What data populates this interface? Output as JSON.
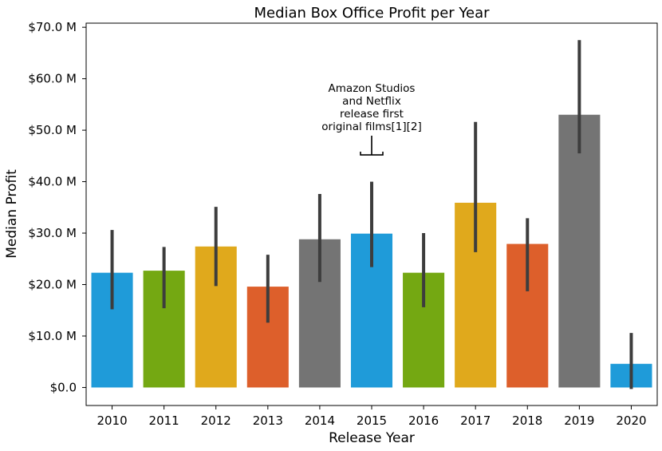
{
  "chart_data": {
    "type": "bar",
    "title": "Median Box Office Profit per Year",
    "xlabel": "Release Year",
    "ylabel": "Median Profit",
    "categories": [
      "2010",
      "2011",
      "2012",
      "2013",
      "2014",
      "2015",
      "2016",
      "2017",
      "2018",
      "2019",
      "2020"
    ],
    "values": [
      22.3,
      22.7,
      27.4,
      19.6,
      28.8,
      29.9,
      22.3,
      35.9,
      27.9,
      53.0,
      4.6
    ],
    "error_low": [
      15.2,
      15.4,
      19.7,
      12.6,
      20.5,
      23.4,
      15.6,
      26.3,
      18.7,
      45.5,
      -0.3
    ],
    "error_high": [
      30.6,
      27.3,
      35.1,
      25.8,
      37.6,
      40.0,
      30.0,
      51.6,
      32.9,
      67.5,
      10.6
    ],
    "bar_colors": [
      "#1f9bd9",
      "#74a812",
      "#e0a91c",
      "#dd5f2b",
      "#747474",
      "#1f9bd9",
      "#74a812",
      "#e0a91c",
      "#dd5f2b",
      "#747474",
      "#1f9bd9"
    ],
    "errorbar_color": "#3d3d3d",
    "ylim": [
      -3.5,
      70.8
    ],
    "yticks": [
      0,
      10,
      20,
      30,
      40,
      50,
      60,
      70
    ],
    "ytick_labels": [
      "$0.0",
      "$10.0 M",
      "$20.0 M",
      "$30.0 M",
      "$40.0 M",
      "$50.0 M",
      "$60.0 M",
      "$70.0 M"
    ],
    "grid": false,
    "annotation": {
      "lines": [
        "Amazon Studios",
        "and Netflix",
        "release first",
        "original films[1][2]"
      ],
      "category": "2015",
      "value": 45.2
    }
  }
}
